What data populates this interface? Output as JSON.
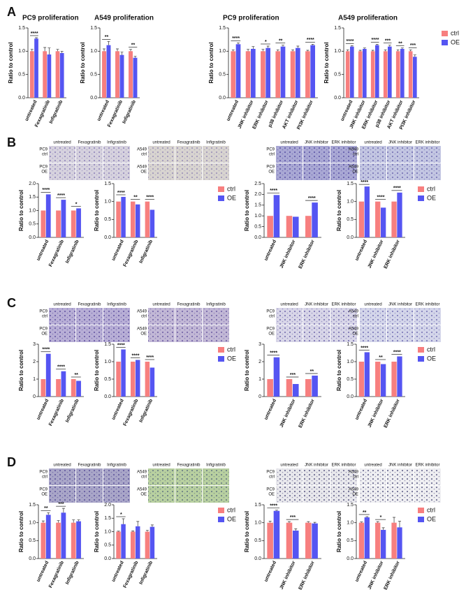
{
  "panel_labels": [
    "A",
    "B",
    "C",
    "D"
  ],
  "micrographs": [
    {
      "columns": [
        "untreated",
        "Fexagratinib",
        "Infigratinib"
      ],
      "rows": [
        [
          "PC9",
          "ctrl"
        ],
        [
          "PC9",
          "OE"
        ]
      ],
      "color": "#d6d2de",
      "dots": "#7d6fb0"
    },
    {
      "columns": [
        "untreated",
        "Fexagratinib",
        "Infigratinib"
      ],
      "rows": [
        [
          "A549",
          "ctrl"
        ],
        [
          "A549",
          "OE"
        ]
      ],
      "color": "#d8d4d0",
      "dots": "#8a7db0"
    },
    {
      "columns": [
        "untreated",
        "JNK inhibitor",
        "ERK inhibitor"
      ],
      "rows": [
        [
          "PC9",
          "ctrl"
        ],
        [
          "PC9",
          "OE"
        ]
      ],
      "color": "#a9a8d4",
      "dots": "#4a3f9a"
    },
    {
      "columns": [
        "untreated",
        "JNK inhibitor",
        "ERK inhibitor"
      ],
      "rows": [
        [
          "A549",
          "ctrl"
        ],
        [
          "A549",
          "OE"
        ]
      ],
      "color": "#c3c6e2",
      "dots": "#5b56a6"
    },
    {
      "columns": [
        "untreated",
        "Fexagratinib",
        "Infigratinib"
      ],
      "rows": [
        [
          "PC9",
          "ctrl"
        ],
        [
          "PC9",
          "OE"
        ]
      ],
      "color": "#b8afd6",
      "dots": "#4e3d95"
    },
    {
      "columns": [
        "untreated",
        "Fexagratinib",
        "Infigratinib"
      ],
      "rows": [
        [
          "A549",
          "ctrl"
        ],
        [
          "A549",
          "OE"
        ]
      ],
      "color": "#c2b8d6",
      "dots": "#5a4797"
    },
    {
      "columns": [
        "untreated",
        "JNK inhibitor",
        "ERK inhibitor"
      ],
      "rows": [
        [
          "PC9",
          "ctrl"
        ],
        [
          "PC9",
          "OE"
        ]
      ],
      "color": "#d8d6e8",
      "dots": "#5a50a0"
    },
    {
      "columns": [
        "untreated",
        "JNK inhibitor",
        "ERK inhibitor"
      ],
      "rows": [
        [
          "A549",
          "ctrl"
        ],
        [
          "A549",
          "OE"
        ]
      ],
      "color": "#d4d6ea",
      "dots": "#5e58a8"
    },
    {
      "columns": [
        "untreated",
        "Fexagratinib",
        "Infigratinib"
      ],
      "rows": [
        [
          "PC9",
          "ctrl"
        ],
        [
          "PC9",
          "OE"
        ]
      ],
      "color": "#a9a6c8",
      "dots": "#4a3f8f"
    },
    {
      "columns": [
        "untreated",
        "Fexagratinib",
        "Infigratinib"
      ],
      "rows": [
        [
          "A549",
          "ctrl"
        ],
        [
          "A549",
          "OE"
        ]
      ],
      "color": "#b8d0a0",
      "dots": "#4f5f7a"
    },
    {
      "columns": [
        "untreated",
        "JNK inhibitor",
        "ERK inhibitor"
      ],
      "rows": [
        [
          "PC9",
          "ctrl"
        ],
        [
          "PC9",
          "OE"
        ]
      ],
      "color": "#e8e8ec",
      "dots": "#3e3a6e"
    },
    {
      "columns": [
        "untreated",
        "JNK inhibitor",
        "ERK inhibitor"
      ],
      "rows": [
        [
          "A549",
          "ctrl"
        ],
        [
          "A549",
          "OE"
        ]
      ],
      "color": "#efeff2",
      "dots": "#3e3a6e"
    }
  ],
  "chart_data": [
    {
      "type": "bar",
      "title": "PC9 proliferation",
      "y_label": "Ratio to control",
      "categories": [
        "untreated",
        "Fexagratinib",
        "Infigratinib"
      ],
      "series": [
        {
          "name": "ctrl",
          "color": "#f77f7f",
          "values": [
            1,
            1,
            1
          ],
          "errors": [
            0.04,
            0.08,
            0.04
          ]
        },
        {
          "name": "OE",
          "color": "#5555f2",
          "values": [
            1.27,
            0.93,
            0.96
          ],
          "errors": [
            0.02,
            0.14,
            0.04
          ]
        }
      ],
      "significance": [
        "****",
        null,
        null
      ],
      "ylim": [
        0,
        1.5
      ],
      "yticks": [
        {
          "value": 0,
          "label": "0.0"
        },
        0.5,
        {
          "value": 1,
          "label": "1.0"
        },
        1.5
      ],
      "legend": false
    },
    {
      "type": "bar",
      "title": "A549 proliferation",
      "y_label": "Ratio to control",
      "categories": [
        "untreated",
        "Fexagratinib",
        "Infigratinib"
      ],
      "series": [
        {
          "name": "ctrl",
          "color": "#f77f7f",
          "values": [
            1,
            1,
            1
          ],
          "errors": [
            0.05,
            0.05,
            0.04
          ]
        },
        {
          "name": "OE",
          "color": "#5555f2",
          "values": [
            1.13,
            0.92,
            0.86
          ],
          "errors": [
            0.08,
            0.06,
            0.03
          ]
        }
      ],
      "significance": [
        "**",
        null,
        "**"
      ],
      "ylim": [
        0,
        1.5
      ],
      "yticks": [
        {
          "value": 0,
          "label": "0.0"
        },
        0.5,
        {
          "value": 1,
          "label": "1.0"
        },
        1.5
      ],
      "legend": false
    },
    {
      "type": "bar",
      "title": "PC9 proliferation",
      "y_label": "Ratio to control",
      "categories": [
        "untreated",
        "JNK inhibitor",
        "ERK inhibitor",
        "p38 inhibitor",
        "AKT inhibitor",
        "PI3K inhibitor"
      ],
      "series": [
        {
          "name": "ctrl",
          "color": "#f77f7f",
          "values": [
            1,
            1,
            1,
            1,
            1,
            1
          ],
          "errors": [
            0.03,
            0.04,
            0.04,
            0.03,
            0.03,
            0.02
          ]
        },
        {
          "name": "OE",
          "color": "#5555f2",
          "values": [
            1.15,
            1.05,
            1.07,
            1.1,
            1.07,
            1.13
          ],
          "errors": [
            0.03,
            0.05,
            0.04,
            0.03,
            0.04,
            0.02
          ]
        }
      ],
      "significance": [
        "****",
        null,
        "*",
        "**",
        null,
        "****"
      ],
      "ylim": [
        0,
        1.5
      ],
      "yticks": [
        {
          "value": 0,
          "label": "0.0"
        },
        0.5,
        {
          "value": 1,
          "label": "1.0"
        },
        1.5
      ],
      "legend": false
    },
    {
      "type": "bar",
      "title": "A549 proliferation",
      "y_label": "Ratio to control",
      "categories": [
        "untreated",
        "JNK inhibitor",
        "ERK inhibitor",
        "p38 inhibitor",
        "AKT inhibitor",
        "PI3K inhibitor"
      ],
      "series": [
        {
          "name": "ctrl",
          "color": "#f77f7f",
          "values": [
            1,
            1,
            1,
            1,
            1,
            1
          ],
          "errors": [
            0.03,
            0.02,
            0.02,
            0.03,
            0.03,
            0.03
          ]
        },
        {
          "name": "OE",
          "color": "#5555f2",
          "values": [
            1.1,
            1.05,
            1.13,
            1.1,
            1.05,
            0.88
          ],
          "errors": [
            0.02,
            0.02,
            0.02,
            0.03,
            0.02,
            0.04
          ]
        }
      ],
      "significance": [
        "****",
        null,
        "****",
        "***",
        "**",
        "***"
      ],
      "ylim": [
        0,
        1.5
      ],
      "yticks": [
        {
          "value": 0,
          "label": "0.0"
        },
        0.5,
        {
          "value": 1,
          "label": "1.0"
        },
        1.5
      ],
      "legend": true
    },
    {
      "type": "bar",
      "y_label": "Ratio to control",
      "categories": [
        "untreated",
        "Fexagratinib",
        "Infigratinib"
      ],
      "series": [
        {
          "name": "ctrl",
          "color": "#f77f7f",
          "values": [
            1,
            1,
            1
          ]
        },
        {
          "name": "OE",
          "color": "#5555f2",
          "values": [
            1.6,
            1.4,
            1.08
          ]
        }
      ],
      "significance": [
        "****",
        "****",
        "*"
      ],
      "ylim": [
        0,
        2
      ],
      "yticks": [
        {
          "value": 0,
          "label": "0.0"
        },
        0.5,
        {
          "value": 1,
          "label": "1.0"
        },
        1.5,
        {
          "value": 2,
          "label": "2.0"
        }
      ],
      "legend": false
    },
    {
      "type": "bar",
      "y_label": "Ratio to control",
      "categories": [
        "untreated",
        "Fexagratinib",
        "Infigratinib"
      ],
      "series": [
        {
          "name": "ctrl",
          "color": "#f77f7f",
          "values": [
            1,
            1,
            1
          ]
        },
        {
          "name": "OE",
          "color": "#5555f2",
          "values": [
            1.13,
            0.92,
            0.77
          ]
        }
      ],
      "significance": [
        "****",
        "**",
        "****"
      ],
      "ylim": [
        0,
        1.5
      ],
      "yticks": [
        {
          "value": 0,
          "label": "0.0"
        },
        0.5,
        {
          "value": 1,
          "label": "1.0"
        },
        1.5
      ],
      "legend": true
    },
    {
      "type": "bar",
      "y_label": "Ratio to control",
      "categories": [
        "untreated",
        "JNK inhibitor",
        "ERK inhibitor"
      ],
      "series": [
        {
          "name": "ctrl",
          "color": "#f77f7f",
          "values": [
            1,
            1,
            1
          ]
        },
        {
          "name": "OE",
          "color": "#5555f2",
          "values": [
            1.97,
            0.96,
            1.62
          ]
        }
      ],
      "significance": [
        "****",
        null,
        "****"
      ],
      "ylim": [
        0,
        2.5
      ],
      "yticks": [
        {
          "value": 0,
          "label": "0.0"
        },
        0.5,
        {
          "value": 1,
          "label": "1.0"
        },
        1.5,
        {
          "value": 2,
          "label": "2.0"
        },
        2.5
      ],
      "legend": false
    },
    {
      "type": "bar",
      "y_label": "Ratio to control",
      "categories": [
        "untreated",
        "JNK inhibitor",
        "ERK inhibitor"
      ],
      "series": [
        {
          "name": "ctrl",
          "color": "#f77f7f",
          "values": [
            1,
            1,
            1
          ]
        },
        {
          "name": "OE",
          "color": "#5555f2",
          "values": [
            1.42,
            0.83,
            1.25
          ]
        }
      ],
      "significance": [
        "****",
        "****",
        "****"
      ],
      "ylim": [
        0,
        1.5
      ],
      "yticks": [
        {
          "value": 0,
          "label": "0.0"
        },
        0.5,
        {
          "value": 1,
          "label": "1.0"
        },
        1.5
      ],
      "legend": true
    },
    {
      "type": "bar",
      "y_label": "Ratio to control",
      "categories": [
        "untreated",
        "Fexagratinib",
        "Infigratinib"
      ],
      "series": [
        {
          "name": "ctrl",
          "color": "#f77f7f",
          "values": [
            1,
            1,
            1
          ]
        },
        {
          "name": "OE",
          "color": "#5555f2",
          "values": [
            2.45,
            1.45,
            0.9
          ]
        }
      ],
      "significance": [
        "****",
        "****",
        "**"
      ],
      "ylim": [
        0,
        3
      ],
      "yticks": [
        0,
        1,
        2,
        3
      ],
      "legend": false
    },
    {
      "type": "bar",
      "y_label": "Ratio to control",
      "categories": [
        "untreated",
        "Fexagratinib",
        "Infigratinib"
      ],
      "series": [
        {
          "name": "ctrl",
          "color": "#f77f7f",
          "values": [
            1,
            1,
            1
          ]
        },
        {
          "name": "OE",
          "color": "#5555f2",
          "values": [
            1.35,
            1.05,
            0.83
          ]
        }
      ],
      "significance": [
        "****",
        "****",
        "****"
      ],
      "ylim": [
        0,
        1.5
      ],
      "yticks": [
        {
          "value": 0,
          "label": "0.0"
        },
        0.5,
        {
          "value": 1,
          "label": "1.0"
        },
        1.5
      ],
      "legend": true
    },
    {
      "type": "bar",
      "y_label": "Ratio to control",
      "categories": [
        "untreated",
        "JNK inhibitor",
        "ERK inhibitor"
      ],
      "series": [
        {
          "name": "ctrl",
          "color": "#f77f7f",
          "values": [
            1,
            1,
            1
          ]
        },
        {
          "name": "OE",
          "color": "#5555f2",
          "values": [
            2.25,
            0.72,
            1.2
          ]
        }
      ],
      "significance": [
        "****",
        "***",
        "**"
      ],
      "ylim": [
        0,
        3
      ],
      "yticks": [
        0,
        1,
        2,
        3
      ],
      "legend": false
    },
    {
      "type": "bar",
      "y_label": "Ratio to control",
      "categories": [
        "untreated",
        "JNK inhibitor",
        "ERK inhibitor"
      ],
      "series": [
        {
          "name": "ctrl",
          "color": "#f77f7f",
          "values": [
            1,
            1,
            1
          ]
        },
        {
          "name": "OE",
          "color": "#5555f2",
          "values": [
            1.27,
            0.93,
            1.15
          ]
        }
      ],
      "significance": [
        "****",
        "**",
        "****"
      ],
      "ylim": [
        0,
        1.5
      ],
      "yticks": [
        {
          "value": 0,
          "label": "0.0"
        },
        0.5,
        {
          "value": 1,
          "label": "1.0"
        },
        1.5
      ],
      "legend": true
    },
    {
      "type": "bar",
      "y_label": "Ratio to control",
      "categories": [
        "untreated",
        "Fexagratinib",
        "Infigratinib"
      ],
      "series": [
        {
          "name": "ctrl",
          "color": "#f77f7f",
          "values": [
            1,
            1,
            1
          ],
          "errors": [
            0.05,
            0.06,
            0.08
          ]
        },
        {
          "name": "OE",
          "color": "#5555f2",
          "values": [
            1.22,
            1.28,
            1.04
          ],
          "errors": [
            0.06,
            0.12,
            0.04
          ]
        }
      ],
      "significance": [
        "**",
        "***",
        null
      ],
      "ylim": [
        0,
        1.5
      ],
      "yticks": [
        {
          "value": 0,
          "label": "0.0"
        },
        0.5,
        {
          "value": 1,
          "label": "1.0"
        },
        1.5
      ],
      "legend": false
    },
    {
      "type": "bar",
      "y_label": "Ratio to control",
      "categories": [
        "untreated",
        "Fexagratinib",
        "Infigratinib"
      ],
      "series": [
        {
          "name": "ctrl",
          "color": "#f77f7f",
          "values": [
            1,
            1,
            1
          ],
          "errors": [
            0.02,
            0.03,
            0.05
          ]
        },
        {
          "name": "OE",
          "color": "#5555f2",
          "values": [
            1.28,
            1.2,
            1.18
          ],
          "errors": [
            0.2,
            0.18,
            0.07
          ]
        }
      ],
      "significance": [
        "*",
        null,
        null
      ],
      "ylim": [
        0,
        2
      ],
      "yticks": [
        {
          "value": 0,
          "label": "0.0"
        },
        0.5,
        {
          "value": 1,
          "label": "1.0"
        },
        1.5,
        {
          "value": 2,
          "label": "2.0"
        }
      ],
      "legend": true
    },
    {
      "type": "bar",
      "y_label": "Ratio to control",
      "categories": [
        "untreated",
        "JNK inhibitor",
        "ERK inhibitor"
      ],
      "series": [
        {
          "name": "ctrl",
          "color": "#f77f7f",
          "values": [
            1,
            1,
            1
          ],
          "errors": [
            0.04,
            0.03,
            0.03
          ]
        },
        {
          "name": "OE",
          "color": "#5555f2",
          "values": [
            1.33,
            0.78,
            0.98
          ],
          "errors": [
            0.02,
            0.05,
            0.03
          ]
        }
      ],
      "significance": [
        "****",
        "***",
        null
      ],
      "ylim": [
        0,
        1.5
      ],
      "yticks": [
        {
          "value": 0,
          "label": "0.0"
        },
        0.5,
        {
          "value": 1,
          "label": "1.0"
        },
        1.5
      ],
      "legend": false
    },
    {
      "type": "bar",
      "y_label": "Ratio to control",
      "categories": [
        "untreated",
        "JNK inhibitor",
        "ERK inhibitor"
      ],
      "series": [
        {
          "name": "ctrl",
          "color": "#f77f7f",
          "values": [
            1,
            1,
            1
          ],
          "errors": [
            0.02,
            0.03,
            0.15
          ]
        },
        {
          "name": "OE",
          "color": "#5555f2",
          "values": [
            1.15,
            0.8,
            0.87
          ],
          "errors": [
            0.02,
            0.06,
            0.17
          ]
        }
      ],
      "significance": [
        "**",
        "*",
        null
      ],
      "ylim": [
        0,
        1.5
      ],
      "yticks": [
        {
          "value": 0,
          "label": "0.0"
        },
        0.5,
        {
          "value": 1,
          "label": "1.0"
        },
        1.5
      ],
      "legend": true
    }
  ]
}
